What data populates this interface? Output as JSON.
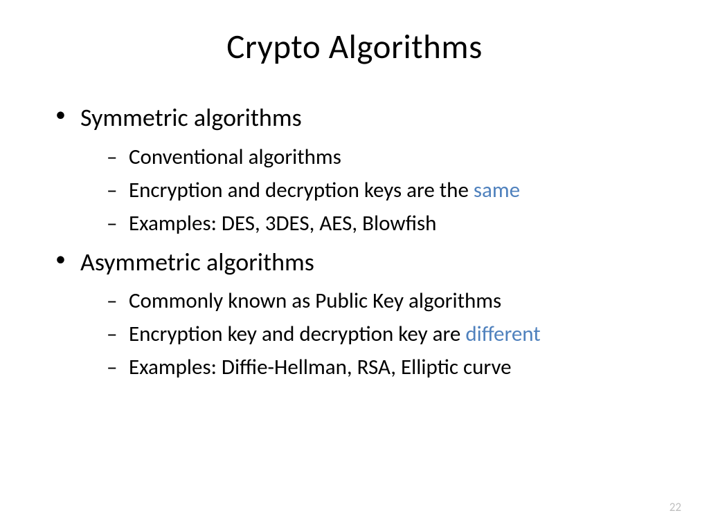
{
  "slide": {
    "title": "Crypto Algorithms",
    "page_number": "22",
    "highlight_color": "#4f81bd",
    "text_color": "#000000",
    "background_color": "#ffffff",
    "bullets": [
      {
        "label": "Symmetric algorithms",
        "sub": [
          {
            "text": "Conventional algorithms"
          },
          {
            "text_prefix": "Encryption and decryption keys are the ",
            "highlight": "same"
          },
          {
            "text": "Examples: DES, 3DES, AES, Blowfish"
          }
        ]
      },
      {
        "label": "Asymmetric algorithms",
        "sub": [
          {
            "text": "Commonly known as Public Key algorithms"
          },
          {
            "text_prefix": "Encryption key and decryption key are ",
            "highlight": "different"
          },
          {
            "text": "Examples: Diffie-Hellman, RSA, Elliptic curve"
          }
        ]
      }
    ]
  }
}
